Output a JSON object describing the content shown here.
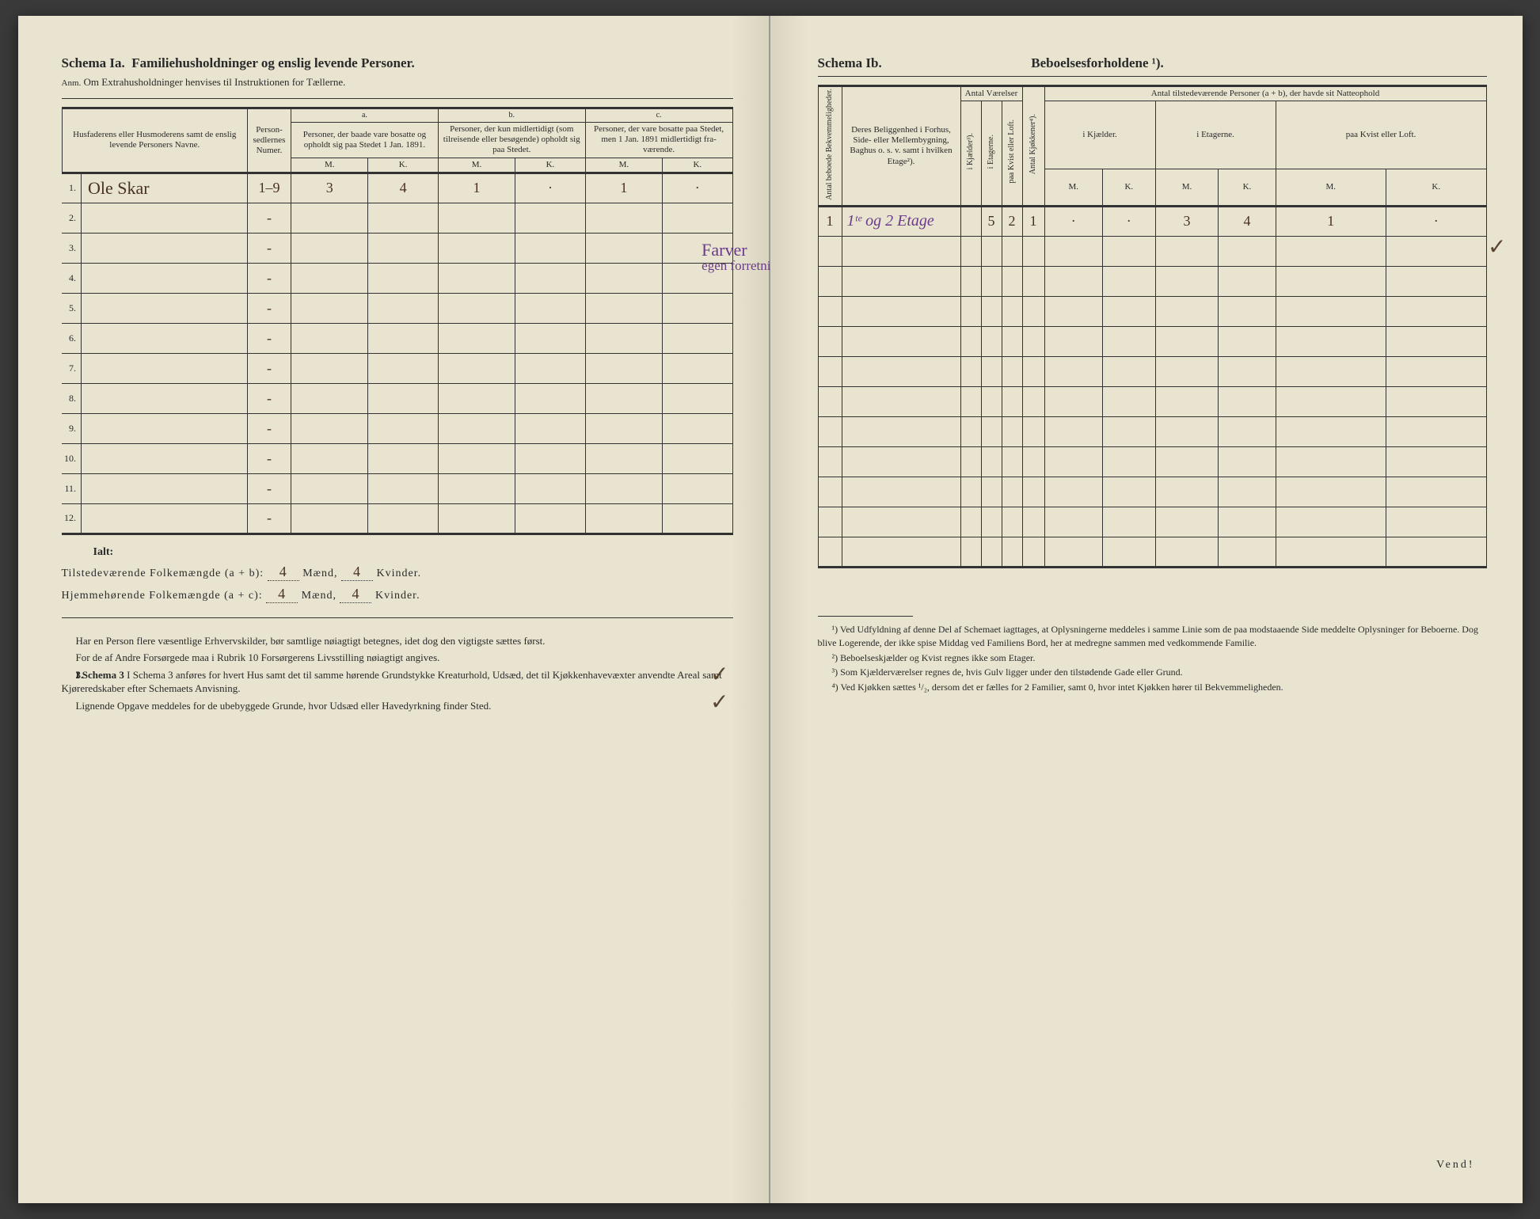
{
  "left": {
    "schema_title_a": "Schema Ia.",
    "schema_title_b": "Familiehusholdninger og enslig levende Personer.",
    "anm_label": "Anm.",
    "anm_text": "Om Extrahusholdninger henvises til Instruktionen for Tællerne.",
    "col_name": "Husfaderens eller Husmode­rens samt de enslig levende Personers Navne.",
    "col_person_num": "Person­sedler­nes Numer.",
    "col_a_label": "a.",
    "col_a": "Personer, der baade vare bo­satte og opholdt sig paa Stedet 1 Jan. 1891.",
    "col_b_label": "b.",
    "col_b": "Personer, der kun midler­tidigt (som tilreisende eller besøgende) opholdt sig paa Stedet.",
    "col_c_label": "c.",
    "col_c": "Personer, der vare bosatte paa Stedet, men 1 Jan. 1891 midler­tidigt fra­værende.",
    "mk_m": "M.",
    "mk_k": "K.",
    "rows": [
      {
        "n": "1.",
        "name": "Ole Skar",
        "num": "1–9",
        "a_m": "3",
        "a_k": "4",
        "b_m": "1",
        "b_k": "·",
        "c_m": "1",
        "c_k": "·"
      },
      {
        "n": "2.",
        "name": "",
        "num": "-",
        "a_m": "",
        "a_k": "",
        "b_m": "",
        "b_k": "",
        "c_m": "",
        "c_k": ""
      },
      {
        "n": "3.",
        "name": "",
        "num": "-",
        "a_m": "",
        "a_k": "",
        "b_m": "",
        "b_k": "",
        "c_m": "",
        "c_k": ""
      },
      {
        "n": "4.",
        "name": "",
        "num": "-",
        "a_m": "",
        "a_k": "",
        "b_m": "",
        "b_k": "",
        "c_m": "",
        "c_k": ""
      },
      {
        "n": "5.",
        "name": "",
        "num": "-",
        "a_m": "",
        "a_k": "",
        "b_m": "",
        "b_k": "",
        "c_m": "",
        "c_k": ""
      },
      {
        "n": "6.",
        "name": "",
        "num": "-",
        "a_m": "",
        "a_k": "",
        "b_m": "",
        "b_k": "",
        "c_m": "",
        "c_k": ""
      },
      {
        "n": "7.",
        "name": "",
        "num": "-",
        "a_m": "",
        "a_k": "",
        "b_m": "",
        "b_k": "",
        "c_m": "",
        "c_k": ""
      },
      {
        "n": "8.",
        "name": "",
        "num": "-",
        "a_m": "",
        "a_k": "",
        "b_m": "",
        "b_k": "",
        "c_m": "",
        "c_k": ""
      },
      {
        "n": "9.",
        "name": "",
        "num": "-",
        "a_m": "",
        "a_k": "",
        "b_m": "",
        "b_k": "",
        "c_m": "",
        "c_k": ""
      },
      {
        "n": "10.",
        "name": "",
        "num": "-",
        "a_m": "",
        "a_k": "",
        "b_m": "",
        "b_k": "",
        "c_m": "",
        "c_k": ""
      },
      {
        "n": "11.",
        "name": "",
        "num": "-",
        "a_m": "",
        "a_k": "",
        "b_m": "",
        "b_k": "",
        "c_m": "",
        "c_k": ""
      },
      {
        "n": "12.",
        "name": "",
        "num": "-",
        "a_m": "",
        "a_k": "",
        "b_m": "",
        "b_k": "",
        "c_m": "",
        "c_k": ""
      }
    ],
    "ialt_label": "Ialt:",
    "tilsted_label": "Tilstedeværende Folkemængde (a + b): ",
    "tilsted_m": "4",
    "tilsted_k": "4",
    "hjemme_label": "Hjemmehørende Folkemængde (a + c): ",
    "hjemme_m": "4",
    "hjemme_k": "4",
    "maend": "Mænd,",
    "kvinder": "Kvinder.",
    "bottom_p1": "Har en Person flere væsentlige Erhvervskilder, bør samtlige nøiagtigt betegnes, idet dog den vigtigste sættes først.",
    "bottom_p2": "For de af Andre Forsørgede maa i Rubrik 10 Forsørgerens Livsstilling nøiagtigt angives.",
    "bottom_p3_num": "3.",
    "bottom_p3": "I Schema 3 anføres for hvert Hus samt det til samme hørende Grund­stykke Kreaturhold, Udsæd, det til Kjøkkenhavevæxter anvendte Areal samt Kjøreredskaber efter Schemaets Anvisning.",
    "bottom_p4": "Lignende Opgave meddeles for de ubebyggede Grunde, hvor Udsæd eller Havedyrkning finder Sted.",
    "purple_annotation_1": "Farver",
    "purple_annotation_2": "egen forretning"
  },
  "right": {
    "schema_title_a": "Schema Ib.",
    "schema_title_b": "Beboelsesforholdene ¹).",
    "col_bekv": "Antal beboede Bekvemmeligheder.",
    "col_belig": "Deres Beliggenhed i Forhus, Side- eller Mellembygning, Baghus o. s. v. samt i hvilken Etage²).",
    "col_vaer_h": "Antal Værelser",
    "col_vaer_1": "i Kjælder³).",
    "col_vaer_2": "i Etagerne.",
    "col_vaer_3": "paa Kvist eller Loft.",
    "col_kjok": "Antal Kjøkkener⁴).",
    "col_natte_h": "Antal tilstedeværende Personer (a + b), der havde sit Natteophold",
    "col_natte_1": "i Kjæl­der.",
    "col_natte_2": "i Etagerne.",
    "col_natte_3": "paa Kvist eller Loft.",
    "mk_m": "M.",
    "mk_k": "K.",
    "rows": [
      {
        "bekv": "1",
        "belig": "1ᵗᵉ og 2 Etage",
        "v1": "",
        "v2": "5",
        "v3": "2",
        "kj": "1",
        "n1m": "·",
        "n1k": "·",
        "n2m": "3",
        "n2k": "4",
        "n3m": "1",
        "n3k": "·"
      },
      {
        "bekv": "",
        "belig": "",
        "v1": "",
        "v2": "",
        "v3": "",
        "kj": "",
        "n1m": "",
        "n1k": "",
        "n2m": "",
        "n2k": "",
        "n3m": "",
        "n3k": ""
      },
      {
        "bekv": "",
        "belig": "",
        "v1": "",
        "v2": "",
        "v3": "",
        "kj": "",
        "n1m": "",
        "n1k": "",
        "n2m": "",
        "n2k": "",
        "n3m": "",
        "n3k": ""
      },
      {
        "bekv": "",
        "belig": "",
        "v1": "",
        "v2": "",
        "v3": "",
        "kj": "",
        "n1m": "",
        "n1k": "",
        "n2m": "",
        "n2k": "",
        "n3m": "",
        "n3k": ""
      },
      {
        "bekv": "",
        "belig": "",
        "v1": "",
        "v2": "",
        "v3": "",
        "kj": "",
        "n1m": "",
        "n1k": "",
        "n2m": "",
        "n2k": "",
        "n3m": "",
        "n3k": ""
      },
      {
        "bekv": "",
        "belig": "",
        "v1": "",
        "v2": "",
        "v3": "",
        "kj": "",
        "n1m": "",
        "n1k": "",
        "n2m": "",
        "n2k": "",
        "n3m": "",
        "n3k": ""
      },
      {
        "bekv": "",
        "belig": "",
        "v1": "",
        "v2": "",
        "v3": "",
        "kj": "",
        "n1m": "",
        "n1k": "",
        "n2m": "",
        "n2k": "",
        "n3m": "",
        "n3k": ""
      },
      {
        "bekv": "",
        "belig": "",
        "v1": "",
        "v2": "",
        "v3": "",
        "kj": "",
        "n1m": "",
        "n1k": "",
        "n2m": "",
        "n2k": "",
        "n3m": "",
        "n3k": ""
      },
      {
        "bekv": "",
        "belig": "",
        "v1": "",
        "v2": "",
        "v3": "",
        "kj": "",
        "n1m": "",
        "n1k": "",
        "n2m": "",
        "n2k": "",
        "n3m": "",
        "n3k": ""
      },
      {
        "bekv": "",
        "belig": "",
        "v1": "",
        "v2": "",
        "v3": "",
        "kj": "",
        "n1m": "",
        "n1k": "",
        "n2m": "",
        "n2k": "",
        "n3m": "",
        "n3k": ""
      },
      {
        "bekv": "",
        "belig": "",
        "v1": "",
        "v2": "",
        "v3": "",
        "kj": "",
        "n1m": "",
        "n1k": "",
        "n2m": "",
        "n2k": "",
        "n3m": "",
        "n3k": ""
      },
      {
        "bekv": "",
        "belig": "",
        "v1": "",
        "v2": "",
        "v3": "",
        "kj": "",
        "n1m": "",
        "n1k": "",
        "n2m": "",
        "n2k": "",
        "n3m": "",
        "n3k": ""
      }
    ],
    "fn1": "¹) Ved Udfyldning af denne Del af Schemaet iagttages, at Oplysningerne meddeles i samme Linie som de paa modstaaende Side meddelte Oplysninger for Beboerne. Dog blive Logerende, der ikke spise Middag ved Familiens Bord, her at medregne sammen med vedkommende Familie.",
    "fn2": "²) Beboelseskjælder og Kvist regnes ikke som Etager.",
    "fn3": "³) Som Kjælderværelser regnes de, hvis Gulv ligger under den tilstødende Gade eller Grund.",
    "fn4": "⁴) Ved Kjøkken sættes ¹/₂, dersom det er fælles for 2 Familier, samt 0, hvor intet Kjøkken hører til Bekvemmeligheden.",
    "vend": "Vend!"
  }
}
